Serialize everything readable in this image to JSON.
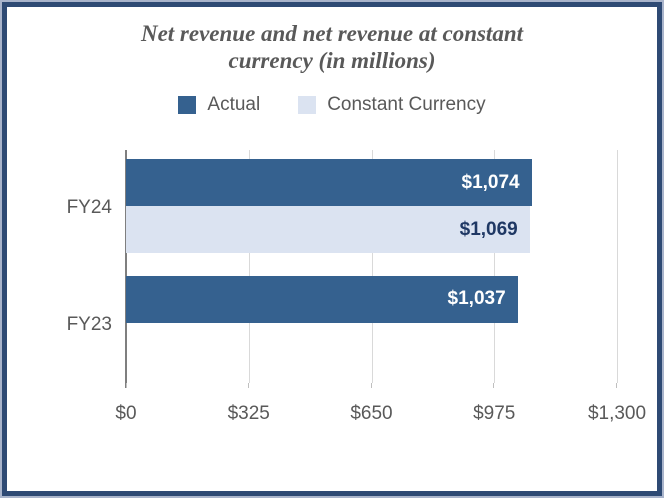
{
  "chart_data": {
    "type": "bar",
    "orientation": "horizontal",
    "title": "Net revenue and net revenue at constant currency (in millions)",
    "categories": [
      "FY24",
      "FY23"
    ],
    "series": [
      {
        "name": "Actual",
        "color": "#35618F",
        "label_color": "#FFFFFF",
        "values": [
          1074,
          1037
        ],
        "labels": [
          "$1,074",
          "$1,037"
        ]
      },
      {
        "name": "Constant Currency",
        "color": "#DBE3F1",
        "label_color": "#1F3864",
        "values": [
          1069,
          null
        ],
        "labels": [
          "$1,069",
          null
        ]
      }
    ],
    "x_ticks": [
      "$0",
      "$325",
      "$650",
      "$975",
      "$1,300"
    ],
    "x_tick_values": [
      0,
      325,
      650,
      975,
      1300
    ],
    "xlim": [
      0,
      1300
    ],
    "legend_position": "top",
    "gridlines": true
  },
  "style_colors": {
    "border_navy": "#2E4A74",
    "border_light": "#A9B4CB",
    "title_text": "#595959",
    "axis_text": "#595959",
    "axis_line": "#7F7F7F",
    "gridline": "#D9D9D9"
  }
}
